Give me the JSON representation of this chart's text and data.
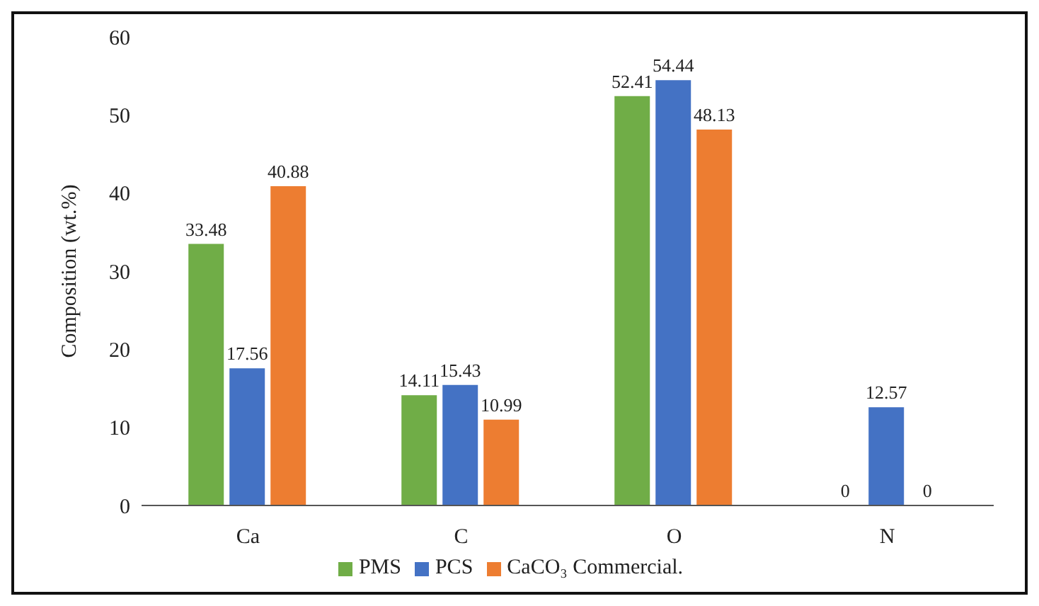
{
  "chart_data": {
    "type": "bar",
    "ylabel": "Composition  (wt.%)",
    "categories": [
      "Ca",
      "C",
      "O",
      "N"
    ],
    "series": [
      {
        "name": "PMS",
        "color": "#70ad47",
        "values": [
          33.48,
          14.11,
          52.41,
          0
        ]
      },
      {
        "name": "PCS",
        "color": "#4472c4",
        "values": [
          17.56,
          15.43,
          54.44,
          12.57
        ]
      },
      {
        "name": "CaCO₃ Commercial.",
        "color": "#ed7d31",
        "values": [
          40.88,
          10.99,
          48.13,
          0
        ]
      }
    ],
    "ylim": [
      0,
      60
    ],
    "yticks": [
      0,
      10,
      20,
      30,
      40,
      50,
      60
    ],
    "grid": false,
    "legend": "bottom",
    "data_labels": true
  }
}
